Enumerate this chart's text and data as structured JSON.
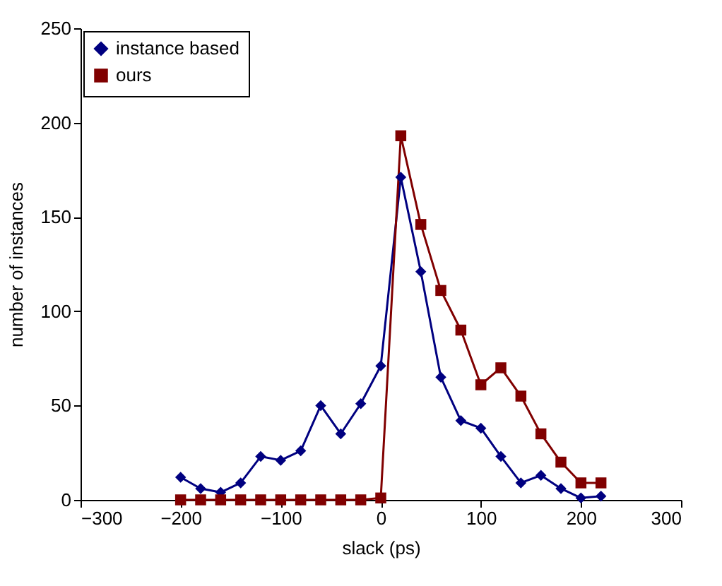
{
  "chart_data": {
    "type": "line",
    "xlabel": "slack (ps)",
    "ylabel": "number of instances",
    "x": [
      -200,
      -180,
      -160,
      -140,
      -120,
      -100,
      -80,
      -60,
      -40,
      -20,
      0,
      20,
      40,
      60,
      80,
      100,
      120,
      140,
      160,
      180,
      200,
      220
    ],
    "series": [
      {
        "name": "instance based",
        "color": "#000080",
        "marker": "diamond",
        "values": [
          12,
          6,
          4,
          9,
          23,
          21,
          26,
          50,
          35,
          51,
          71,
          171,
          121,
          65,
          42,
          38,
          23,
          9,
          13,
          6,
          1,
          2
        ]
      },
      {
        "name": "ours",
        "color": "#800000",
        "marker": "square",
        "values": [
          0,
          0,
          0,
          0,
          0,
          0,
          0,
          0,
          0,
          0,
          1,
          193,
          146,
          111,
          90,
          61,
          70,
          55,
          35,
          20,
          9,
          9
        ]
      }
    ],
    "xlim": [
      -300,
      300
    ],
    "xticks": [
      -300,
      -200,
      -100,
      0,
      100,
      200,
      300
    ],
    "ylim": [
      0,
      250
    ],
    "yticks": [
      0,
      50,
      100,
      150,
      200,
      250
    ],
    "grid": false,
    "legend": "top left",
    "line_style": "solid"
  }
}
